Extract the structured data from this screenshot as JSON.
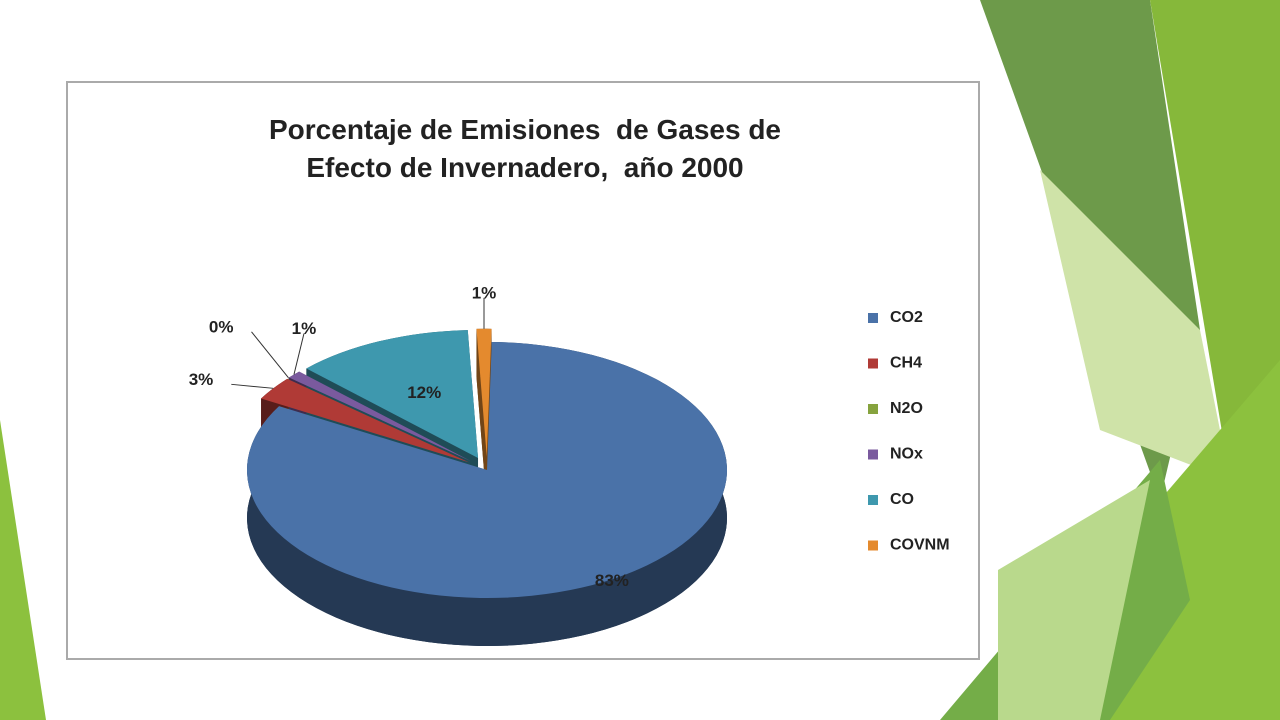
{
  "chart_data": {
    "type": "pie",
    "title": "Porcentaje de Emisiones  de Gases de Efecto de Invernadero,  año 2000",
    "categories": [
      "CO2",
      "CH4",
      "N2O",
      "NOx",
      "CO",
      "COVNM"
    ],
    "values": [
      83,
      3,
      0,
      1,
      12,
      1
    ],
    "value_labels": [
      "83%",
      "3%",
      "0%",
      "1%",
      "12%",
      "1%"
    ],
    "colors": [
      "#4a72a8",
      "#b03a36",
      "#86a33e",
      "#7a5a9e",
      "#3e98ae",
      "#e48a2e"
    ],
    "legend": "right"
  }
}
